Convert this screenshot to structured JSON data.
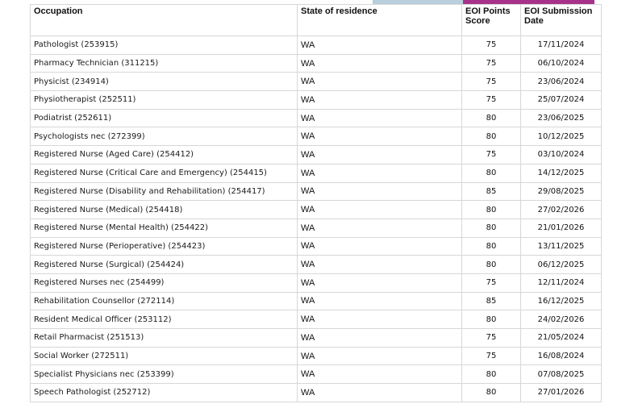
{
  "table": {
    "headers": {
      "occupation": "Occupation",
      "state": "State of residence",
      "score_line1": "EOI Points",
      "score_line2": "Score",
      "date_line1": "EOI Submission",
      "date_line2": "Date"
    },
    "rows": [
      {
        "occupation": "Pathologist (253915)",
        "state": "WA",
        "score": "75",
        "date": "17/11/2024"
      },
      {
        "occupation": "Pharmacy Technician (311215)",
        "state": "WA",
        "score": "75",
        "date": "06/10/2024"
      },
      {
        "occupation": "Physicist (234914)",
        "state": "WA",
        "score": "75",
        "date": "23/06/2024"
      },
      {
        "occupation": "Physiotherapist (252511)",
        "state": "WA",
        "score": "75",
        "date": "25/07/2024"
      },
      {
        "occupation": "Podiatrist (252611)",
        "state": "WA",
        "score": "80",
        "date": "23/06/2025"
      },
      {
        "occupation": "Psychologists nec (272399)",
        "state": "WA",
        "score": "80",
        "date": "10/12/2025"
      },
      {
        "occupation": "Registered Nurse (Aged Care) (254412)",
        "state": "WA",
        "score": "75",
        "date": "03/10/2024"
      },
      {
        "occupation": "Registered Nurse (Critical Care and Emergency) (254415)",
        "state": "WA",
        "score": "80",
        "date": "14/12/2025"
      },
      {
        "occupation": "Registered Nurse (Disability and Rehabilitation) (254417)",
        "state": "WA",
        "score": "85",
        "date": "29/08/2025"
      },
      {
        "occupation": "Registered Nurse (Medical) (254418)",
        "state": "WA",
        "score": "80",
        "date": "27/02/2026"
      },
      {
        "occupation": "Registered Nurse (Mental Health) (254422)",
        "state": "WA",
        "score": "80",
        "date": "21/01/2026"
      },
      {
        "occupation": "Registered Nurse (Perioperative) (254423)",
        "state": "WA",
        "score": "80",
        "date": "13/11/2025"
      },
      {
        "occupation": "Registered Nurse (Surgical) (254424)",
        "state": "WA",
        "score": "80",
        "date": "06/12/2025"
      },
      {
        "occupation": "Registered Nurses nec (254499)",
        "state": "WA",
        "score": "75",
        "date": "12/11/2024"
      },
      {
        "occupation": "Rehabilitation Counsellor (272114)",
        "state": "WA",
        "score": "85",
        "date": "16/12/2025"
      },
      {
        "occupation": "Resident Medical Officer (253112)",
        "state": "WA",
        "score": "80",
        "date": "24/02/2026"
      },
      {
        "occupation": "Retail Pharmacist (251513)",
        "state": "WA",
        "score": "75",
        "date": "21/05/2024"
      },
      {
        "occupation": "Social Worker (272511)",
        "state": "WA",
        "score": "75",
        "date": "16/08/2024"
      },
      {
        "occupation": "Specialist Physicians nec (253399)",
        "state": "WA",
        "score": "80",
        "date": "07/08/2025"
      },
      {
        "occupation": "Speech Pathologist (252712)",
        "state": "WA",
        "score": "80",
        "date": "27/01/2026"
      }
    ]
  },
  "colors": {
    "tab_blue": "#b9cfdd",
    "tab_purple": "#a8328a",
    "border": "#d7d7d7"
  }
}
